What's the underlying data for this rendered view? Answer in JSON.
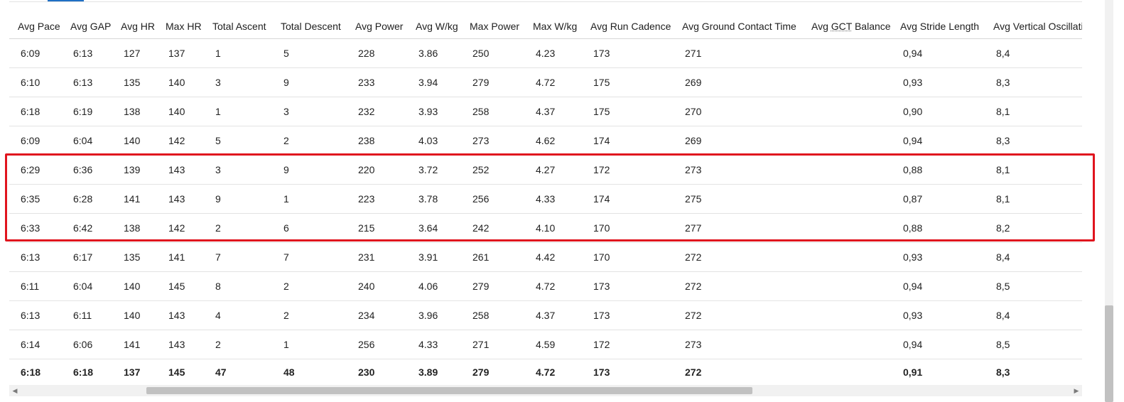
{
  "table": {
    "columns": [
      {
        "label": "Avg Pace"
      },
      {
        "label": "Avg GAP"
      },
      {
        "label": "Avg HR"
      },
      {
        "label": "Max HR"
      },
      {
        "label": "Total Ascent"
      },
      {
        "label": "Total Descent"
      },
      {
        "label": "Avg Power"
      },
      {
        "label": "Avg W/kg"
      },
      {
        "label": "Max Power"
      },
      {
        "label": "Max W/kg"
      },
      {
        "label": "Avg Run Cadence"
      },
      {
        "label": "Avg Ground Contact Time"
      },
      {
        "label": "Avg GCT Balance",
        "abbr": "GCT"
      },
      {
        "label": "Avg Stride Length"
      },
      {
        "label": "Avg Vertical Oscillation"
      }
    ],
    "rows": [
      [
        "6:09",
        "6:13",
        "127",
        "137",
        "1",
        "5",
        "228",
        "3.86",
        "250",
        "4.23",
        "173",
        "271",
        "",
        "0,94",
        "8,4"
      ],
      [
        "6:10",
        "6:13",
        "135",
        "140",
        "3",
        "9",
        "233",
        "3.94",
        "279",
        "4.72",
        "175",
        "269",
        "",
        "0,93",
        "8,3"
      ],
      [
        "6:18",
        "6:19",
        "138",
        "140",
        "1",
        "3",
        "232",
        "3.93",
        "258",
        "4.37",
        "175",
        "270",
        "",
        "0,90",
        "8,1"
      ],
      [
        "6:09",
        "6:04",
        "140",
        "142",
        "5",
        "2",
        "238",
        "4.03",
        "273",
        "4.62",
        "174",
        "269",
        "",
        "0,94",
        "8,3"
      ],
      [
        "6:29",
        "6:36",
        "139",
        "143",
        "3",
        "9",
        "220",
        "3.72",
        "252",
        "4.27",
        "172",
        "273",
        "",
        "0,88",
        "8,1"
      ],
      [
        "6:35",
        "6:28",
        "141",
        "143",
        "9",
        "1",
        "223",
        "3.78",
        "256",
        "4.33",
        "174",
        "275",
        "",
        "0,87",
        "8,1"
      ],
      [
        "6:33",
        "6:42",
        "138",
        "142",
        "2",
        "6",
        "215",
        "3.64",
        "242",
        "4.10",
        "170",
        "277",
        "",
        "0,88",
        "8,2"
      ],
      [
        "6:13",
        "6:17",
        "135",
        "141",
        "7",
        "7",
        "231",
        "3.91",
        "261",
        "4.42",
        "170",
        "272",
        "",
        "0,93",
        "8,4"
      ],
      [
        "6:11",
        "6:04",
        "140",
        "145",
        "8",
        "2",
        "240",
        "4.06",
        "279",
        "4.72",
        "173",
        "272",
        "",
        "0,94",
        "8,5"
      ],
      [
        "6:13",
        "6:11",
        "140",
        "143",
        "4",
        "2",
        "234",
        "3.96",
        "258",
        "4.37",
        "173",
        "272",
        "",
        "0,93",
        "8,4"
      ],
      [
        "6:14",
        "6:06",
        "141",
        "143",
        "2",
        "1",
        "256",
        "4.33",
        "271",
        "4.59",
        "172",
        "273",
        "",
        "0,94",
        "8,5"
      ]
    ],
    "summary": [
      "6:18",
      "6:18",
      "137",
      "145",
      "47",
      "48",
      "230",
      "3.89",
      "279",
      "4.72",
      "173",
      "272",
      "",
      "0,91",
      "8,3"
    ]
  },
  "highlight": {
    "color": "#e0141e",
    "rows": [
      4,
      6
    ]
  },
  "colors": {
    "accent": "#1f6fc5",
    "highlight": "#e0141e"
  },
  "scrollbar": {
    "left_icon": "triangle-left-icon",
    "right_icon": "triangle-right-icon"
  }
}
